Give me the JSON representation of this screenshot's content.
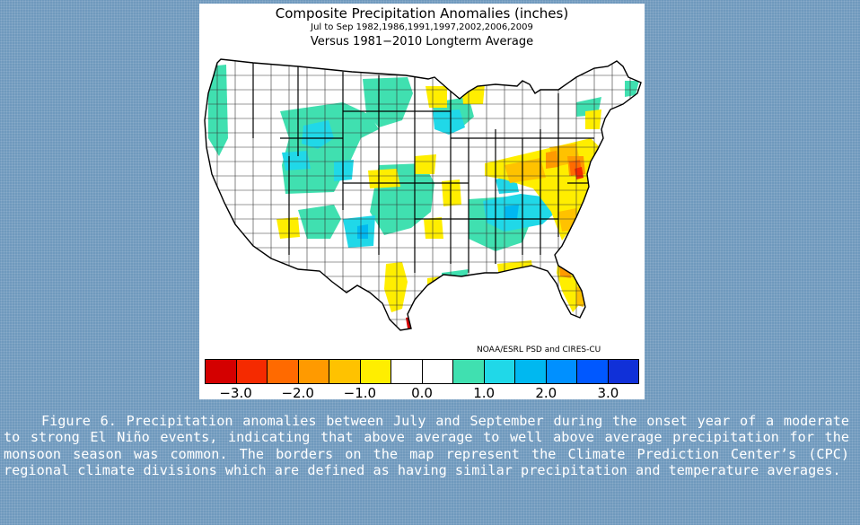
{
  "figure": {
    "title": "Composite Precipitation Anomalies (inches)",
    "subtitle": "Jul to Sep   1982,1986,1991,1997,2002,2006,2009",
    "comparison": "Versus 1981−2010 Longterm Average",
    "credit": "NOAA/ESRL PSD and CIRES-CU"
  },
  "legend": {
    "colors": [
      "#d40000",
      "#f52a00",
      "#ff6a00",
      "#ff9a00",
      "#ffc200",
      "#ffee00",
      "#ffffff",
      "#ffffff",
      "#40e0b0",
      "#20d8e8",
      "#00b8f0",
      "#0090ff",
      "#0058ff",
      "#1030d8"
    ],
    "ticks": [
      "−3.0",
      "−2.0",
      "−1.0",
      "0.0",
      "1.0",
      "2.0",
      "3.0"
    ]
  },
  "caption": "Figure 6. Precipitation anomalies between July and September during the onset year of a moderate to strong El Niño events, indicating that above average to well above average precipitation for the monsoon season was common. The borders on the map represent the Climate Prediction Center’s (CPC) regional climate divisions which are defined as having similar precipitation and temperature averages."
}
